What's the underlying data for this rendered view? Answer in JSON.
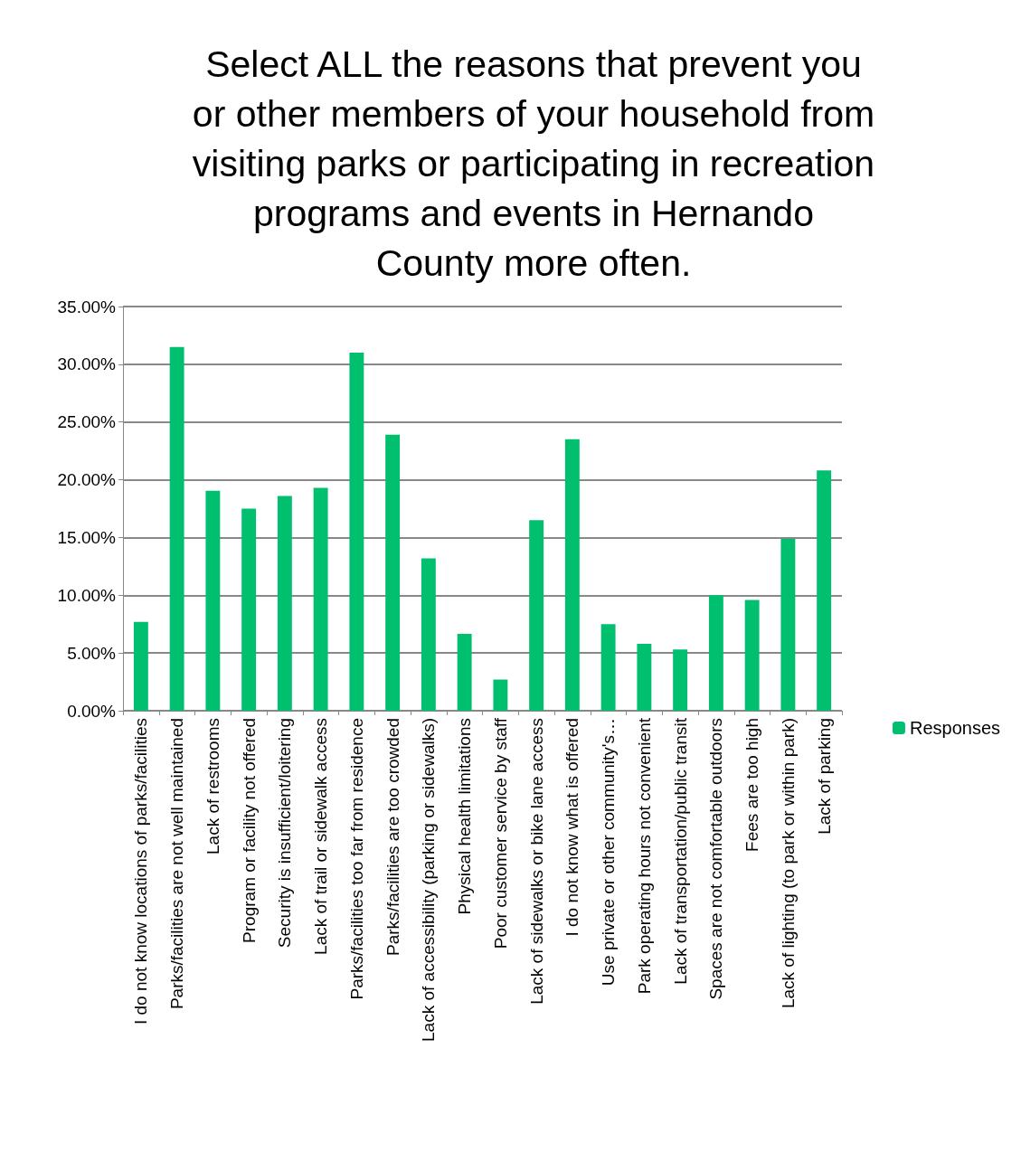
{
  "chart_data": {
    "type": "bar",
    "title": "Select ALL the reasons that prevent you\nor other members of your household from\nvisiting parks or participating in recreation\nprograms and events in Hernando\nCounty more often.",
    "categories": [
      "I do not know locations of parks/facilities",
      "Parks/facilities are not well maintained",
      "Lack of restrooms",
      "Program or facility not offered",
      "Security is insufficient/loitering",
      "Lack of trail or sidewalk access",
      "Parks/facilities too far from residence",
      "Parks/facilities are too crowded",
      "Lack of accessibility (parking or sidewalks)",
      "Physical health limitations",
      "Poor customer service by staff",
      "Lack of sidewalks or bike lane access",
      "I do not know what is offered",
      "Use private or other community's…",
      "Park operating hours not convenient",
      "Lack of transportation/public transit",
      "Spaces are not comfortable outdoors",
      "Fees are too high",
      "Lack of lighting (to park or within park)",
      "Lack of parking"
    ],
    "series": [
      {
        "name": "Responses",
        "color": "#00bf6f",
        "values": [
          7.7,
          31.5,
          19.05,
          17.5,
          18.6,
          19.3,
          31.0,
          23.9,
          13.2,
          6.65,
          2.7,
          16.5,
          23.5,
          7.5,
          5.8,
          5.3,
          10.0,
          9.6,
          14.9,
          20.8
        ]
      }
    ],
    "ylim": [
      0,
      35
    ],
    "yticks": [
      {
        "value": 0,
        "label": "0.00%"
      },
      {
        "value": 5,
        "label": "5.00%"
      },
      {
        "value": 10,
        "label": "10.00%"
      },
      {
        "value": 15,
        "label": "15.00%"
      },
      {
        "value": 20,
        "label": "20.00%"
      },
      {
        "value": 25,
        "label": "25.00%"
      },
      {
        "value": 30,
        "label": "30.00%"
      },
      {
        "value": 35,
        "label": "35.00%"
      }
    ],
    "grid": "y",
    "legend": "right"
  }
}
